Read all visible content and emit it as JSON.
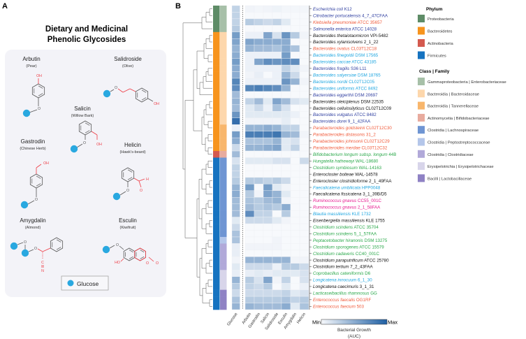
{
  "panel_a": {
    "label": "A",
    "title_line1": "Dietary and Medicinal",
    "title_line2": "Phenolic Glycosides",
    "compounds": [
      {
        "name": "Arbutin",
        "source": "(Pear)"
      },
      {
        "name": "Salidroside",
        "source": "(Olive)"
      },
      {
        "name": "Salicin",
        "source": "(Willow Bark)"
      },
      {
        "name": "Gastrodin",
        "source": "(Chinese Herb)"
      },
      {
        "name": "Helicin",
        "source": "(Hawk's-beard)"
      },
      {
        "name": "Amygdalin",
        "source": "(Almond)"
      },
      {
        "name": "Esculin",
        "source": "(Kiwifruit)"
      }
    ],
    "atoms": {
      "oh": "OH",
      "ho": "HO",
      "o": "O",
      "h": "H",
      "c": "C",
      "n": "N"
    },
    "legend_label": "Glucose",
    "colors": {
      "glucose": "#29a8e0",
      "highlight": "#ee3a43",
      "bond": "#555555",
      "panel_bg": "#f3f3f8"
    }
  },
  "panel_b": {
    "label": "B",
    "colorbar": {
      "min_label": "Min",
      "max_label": "Max",
      "title_line1": "Bacterial Growth",
      "title_line2": "(AUC)",
      "low_color": "#f7f9fc",
      "high_color": "#1f5fa3"
    },
    "phylum_legend": {
      "title": "Phylum",
      "items": [
        {
          "label": "Proteobacteria",
          "color": "#5e8c67"
        },
        {
          "label": "Bacteroidetes",
          "color": "#f7941d"
        },
        {
          "label": "Actinobacteria",
          "color": "#d45a4f"
        },
        {
          "label": "Firmicutes",
          "color": "#1673c0"
        }
      ]
    },
    "family_legend": {
      "title": "Class | Family",
      "items": [
        {
          "label": "Gammaproteobacteria | Enterobacteriaceae",
          "color": "#a7c0a8"
        },
        {
          "label": "Bacteroidia | Bacteroidaceae",
          "color": "#fdd7ac"
        },
        {
          "label": "Bacteroidia | Tannerellaceae",
          "color": "#f8b66c"
        },
        {
          "label": "Actinomycetia | Bifidobacteriaceae",
          "color": "#e8ab9e"
        },
        {
          "label": "Clostridia | Lachnospiraceae",
          "color": "#6f95d3"
        },
        {
          "label": "Clostridia | Peptostreptococcaceae",
          "color": "#b4c6ea"
        },
        {
          "label": "Clostridia | Clostridiaceae",
          "color": "#b1a9d9"
        },
        {
          "label": "Erysipelotrichia | Erysipelotrichaceae",
          "color": "#d8d5ea"
        },
        {
          "label": "Bacilli | Lactobacillaceae",
          "color": "#8f82c4"
        }
      ]
    },
    "label_colors": {
      "navy": "#2f3fa0",
      "black": "#111111",
      "red": "#f05a3a",
      "cyan": "#1fa6e0",
      "green": "#2aa84a",
      "magenta": "#e6198f"
    }
  },
  "chart_data": {
    "type": "heatmap",
    "colorbar_label": "Bacterial Growth (AUC)",
    "value_scale": "relative, 0 = Min, 1 = Max",
    "columns": [
      "Glucose",
      "Arbutin",
      "Gastrodin",
      "Salicin",
      "Salidroside",
      "Esculin",
      "Amygdalin",
      "Helicin"
    ],
    "rows": [
      {
        "name": "Escherichia coli",
        "strain": "K12",
        "color": "navy",
        "phylum": 0,
        "family": 0,
        "values": [
          0.25,
          0.03,
          0.02,
          0.03,
          0.04,
          0.02,
          0.02,
          0.02
        ]
      },
      {
        "name": "Citrobacter portucalensis",
        "strain": "4_7_47CFAA",
        "color": "navy",
        "phylum": 0,
        "family": 0,
        "values": [
          0.25,
          0,
          0,
          0,
          0,
          0,
          0,
          0
        ]
      },
      {
        "name": "Klebsiella pneumoniae",
        "strain": "ATCC 35657",
        "color": "red",
        "phylum": 0,
        "family": 0,
        "values": [
          0.25,
          0.3,
          0.25,
          0.2,
          0.25,
          0.1,
          0,
          0
        ]
      },
      {
        "name": "Salmonella enterica",
        "strain": "ATCC 14028",
        "color": "navy",
        "phylum": 0,
        "family": 0,
        "values": [
          0.3,
          0,
          0,
          0,
          0,
          0,
          0,
          0
        ]
      },
      {
        "name": "Bacteroides thetaiotaomicron",
        "strain": "VPI-5482",
        "color": "black",
        "phylum": 1,
        "family": 1,
        "values": [
          0.6,
          0.05,
          0.05,
          0.55,
          0.15,
          0.65,
          0.3,
          0.03
        ]
      },
      {
        "name": "Bacteroides xylanisolvens",
        "strain": "2_1_22",
        "color": "black",
        "phylum": 1,
        "family": 1,
        "values": [
          0.55,
          0.55,
          0.5,
          0.5,
          0.5,
          0.5,
          0,
          0
        ]
      },
      {
        "name": "Bacteroides ovatus",
        "strain": "CL03T12C18",
        "color": "red",
        "phylum": 1,
        "family": 1,
        "values": [
          0.45,
          0.45,
          0.4,
          0.4,
          0.35,
          0.5,
          0.35,
          0
        ]
      },
      {
        "name": "Bacteroides finegoldii",
        "strain": "DSM 17565",
        "color": "cyan",
        "phylum": 1,
        "family": 1,
        "values": [
          0.5,
          0.05,
          0.05,
          0.05,
          0.05,
          0.6,
          0,
          0
        ]
      },
      {
        "name": "Bacteroides caccae",
        "strain": "ATCC 43185",
        "color": "cyan",
        "phylum": 1,
        "family": 1,
        "values": [
          0.6,
          0.05,
          0.55,
          0.7,
          0.65,
          0.7,
          0.7,
          0
        ]
      },
      {
        "name": "Bacteroides fragilis",
        "strain": "S36 L11",
        "color": "navy",
        "phylum": 1,
        "family": 1,
        "values": [
          0.5,
          0.05,
          0.05,
          0.05,
          0.05,
          0.25,
          0.1,
          0.03
        ]
      },
      {
        "name": "Bacteroides salyersiae",
        "strain": "DSM 18765",
        "color": "cyan",
        "phylum": 1,
        "family": 1,
        "values": [
          0.5,
          0.03,
          0.07,
          0,
          0.05,
          0.45,
          0.2,
          0
        ]
      },
      {
        "name": "Bacteroides nordii",
        "strain": "CL02T12C05",
        "color": "cyan",
        "phylum": 1,
        "family": 1,
        "values": [
          0.75,
          0.05,
          0.05,
          0.05,
          0.05,
          0.65,
          0.45,
          0.03
        ]
      },
      {
        "name": "Bacteroides uniformis",
        "strain": "ATCC 8492",
        "color": "cyan",
        "phylum": 1,
        "family": 1,
        "values": [
          0.7,
          0.75,
          0.8,
          0.75,
          0.7,
          0.45,
          0,
          0
        ]
      },
      {
        "name": "Bacteroides eggerthii",
        "strain": "DSM 20697",
        "color": "navy",
        "phylum": 1,
        "family": 1,
        "values": [
          0.4,
          0,
          0,
          0,
          0,
          0,
          0,
          0
        ]
      },
      {
        "name": "Bacteroides oleiciplenus",
        "strain": "DSM 22535",
        "color": "black",
        "phylum": 1,
        "family": 1,
        "values": [
          0.45,
          0.25,
          0.4,
          0.1,
          0.55,
          0.4,
          0.15,
          0.1
        ]
      },
      {
        "name": "Bacteroides cellulosilyticus",
        "strain": "CL02T12C09",
        "color": "black",
        "phylum": 1,
        "family": 1,
        "values": [
          0.4,
          0.1,
          0.2,
          0.05,
          0.35,
          0.15,
          0,
          0
        ]
      },
      {
        "name": "Bacteroides vulgatus",
        "strain": "ATCC 8482",
        "color": "navy",
        "phylum": 1,
        "family": 1,
        "values": [
          0.65,
          0.1,
          0.1,
          0.1,
          0.1,
          0.1,
          0.05,
          0
        ]
      },
      {
        "name": "Bacteroides dorei",
        "strain": "9_1_42FAA",
        "color": "navy",
        "phylum": 1,
        "family": 1,
        "values": [
          0.9,
          0.03,
          0.03,
          0.03,
          0.03,
          0.08,
          0,
          0
        ]
      },
      {
        "name": "Parabacteroides goldsteinii",
        "strain": "CL02T12C30",
        "color": "red",
        "phylum": 1,
        "family": 2,
        "values": [
          0.05,
          0.45,
          0.45,
          0.5,
          0.45,
          0.25,
          0.25,
          0
        ]
      },
      {
        "name": "Parabacteroides distasonis",
        "strain": "31_2",
        "color": "red",
        "phylum": 1,
        "family": 2,
        "values": [
          0.6,
          0.8,
          0.8,
          0.8,
          0.85,
          0.45,
          0.4,
          0.03
        ]
      },
      {
        "name": "Parabacteroides johnsonii",
        "strain": "CL02T12C29",
        "color": "red",
        "phylum": 1,
        "family": 2,
        "values": [
          0.5,
          0.35,
          0.35,
          0.35,
          0.45,
          0.1,
          0.15,
          0
        ]
      },
      {
        "name": "Parabacteroides merdae",
        "strain": "CL03T12C32",
        "color": "red",
        "phylum": 1,
        "family": 2,
        "values": [
          0.2,
          0.45,
          0.45,
          0.5,
          0.55,
          0.1,
          0.25,
          0
        ]
      },
      {
        "name": "Bifidobacterium longum subsp. longum",
        "strain": "44B",
        "color": "green",
        "phylum": 2,
        "family": 3,
        "values": [
          0.4,
          0,
          0,
          0,
          0,
          0,
          0,
          0
        ]
      },
      {
        "name": "Hungatella hathewayi",
        "strain": "WAL-18680",
        "color": "green",
        "phylum": 3,
        "family": 4,
        "values": [
          0.15,
          0.1,
          0.1,
          0.1,
          0.15,
          0.15,
          0,
          0.2
        ]
      },
      {
        "name": "Clostridium symbiosum",
        "strain": "WAL-14163",
        "color": "green",
        "phylum": 3,
        "family": 4,
        "values": [
          0.25,
          0,
          0,
          0,
          0,
          0,
          0,
          0
        ]
      },
      {
        "name": "Enterocloster bolteae",
        "strain": "WAL-14578",
        "color": "black",
        "phylum": 3,
        "family": 4,
        "values": [
          0.25,
          0,
          0,
          0,
          0,
          0,
          0,
          0
        ]
      },
      {
        "name": "Enterocloster clostridioforme",
        "strain": "2_1_49FAA",
        "color": "black",
        "phylum": 3,
        "family": 4,
        "values": [
          0.3,
          0.3,
          0.3,
          0.25,
          0.3,
          0.2,
          0,
          0
        ]
      },
      {
        "name": "Faecalicatena umbilicata",
        "strain": "HPP0048",
        "color": "cyan",
        "phylum": 3,
        "family": 4,
        "values": [
          0.45,
          0.6,
          0,
          0.6,
          0.1,
          0.03,
          0,
          0
        ]
      },
      {
        "name": "Faecalicatena fissicatena",
        "strain": "3_1_39B/D5",
        "color": "black",
        "phylum": 3,
        "family": 4,
        "values": [
          0.5,
          0.3,
          0.03,
          0.55,
          0.45,
          0.1,
          0,
          0
        ]
      },
      {
        "name": "Ruminococcus gnavus",
        "strain": "CC55_001C",
        "color": "magenta",
        "phylum": 3,
        "family": 4,
        "values": [
          0.4,
          0.35,
          0.3,
          0.4,
          0.45,
          0.03,
          0,
          0
        ]
      },
      {
        "name": "Ruminococcus gnavus",
        "strain": "2_1_58FAA",
        "color": "magenta",
        "phylum": 3,
        "family": 4,
        "values": [
          0.4,
          0.4,
          0.3,
          0.35,
          0.3,
          0.5,
          0,
          0
        ]
      },
      {
        "name": "Blautia massiliensis",
        "strain": "KLE 1732",
        "color": "cyan",
        "phylum": 3,
        "family": 4,
        "values": [
          0.4,
          0.7,
          0.25,
          0.25,
          0,
          0.3,
          0,
          0
        ]
      },
      {
        "name": "Eisenbergiella massiliensis",
        "strain": "KLE 1755",
        "color": "black",
        "phylum": 3,
        "family": 4,
        "values": [
          0.1,
          0.2,
          0.2,
          0.2,
          0.1,
          0.03,
          0,
          0
        ]
      },
      {
        "name": "Clostridium scindens",
        "strain": "ATCC 35704",
        "color": "green",
        "phylum": 3,
        "family": 4,
        "values": [
          0.2,
          0,
          0,
          0,
          0,
          0,
          0,
          0
        ]
      },
      {
        "name": "Clostridium scindens",
        "strain": "5_1_57FAA",
        "color": "green",
        "phylum": 3,
        "family": 4,
        "values": [
          0.35,
          0,
          0,
          0,
          0,
          0,
          0,
          0
        ]
      },
      {
        "name": "Peptacetobacter hiranonis",
        "strain": "DSM 13275",
        "color": "green",
        "phylum": 3,
        "family": 5,
        "values": [
          0.35,
          0,
          0,
          0,
          0.03,
          0,
          0,
          0
        ]
      },
      {
        "name": "Clostridium sporogenes",
        "strain": "ATCC 15579",
        "color": "green",
        "phylum": 3,
        "family": 6,
        "values": [
          0.07,
          0.03,
          0.03,
          0.03,
          0.03,
          0,
          0,
          0
        ]
      },
      {
        "name": "Clostridium cadaveris",
        "strain": "CC40_001C",
        "color": "green",
        "phylum": 3,
        "family": 6,
        "values": [
          0.07,
          0,
          0,
          0,
          0,
          0,
          0,
          0
        ]
      },
      {
        "name": "Clostridium paraputrificum",
        "strain": "ATCC 25780",
        "color": "black",
        "phylum": 3,
        "family": 6,
        "values": [
          0.03,
          0.45,
          0.45,
          0.45,
          0.45,
          0.45,
          0.03,
          0.03
        ]
      },
      {
        "name": "Clostridium tertium",
        "strain": "7_2_43FAA",
        "color": "black",
        "phylum": 3,
        "family": 6,
        "values": [
          0.1,
          0.2,
          0.2,
          0.2,
          0.05,
          0.3,
          0.3,
          0.2
        ]
      },
      {
        "name": "Coprobacillus cateniformis",
        "strain": "D6",
        "color": "green",
        "phylum": 3,
        "family": 7,
        "values": [
          0.07,
          0.07,
          0.1,
          0.07,
          0.1,
          0.1,
          0.1,
          0.15
        ]
      },
      {
        "name": "Longicatena innocuum",
        "strain": "6_1_30",
        "color": "cyan",
        "phylum": 3,
        "family": 7,
        "values": [
          0.45,
          0.3,
          0.15,
          0.55,
          0.03,
          0.25,
          0,
          0.15
        ]
      },
      {
        "name": "Longicatena caecimuris",
        "strain": "3_1_31",
        "color": "black",
        "phylum": 3,
        "family": 7,
        "values": [
          0.3,
          0.25,
          0.2,
          0.3,
          0,
          0.1,
          0,
          0.05
        ]
      },
      {
        "name": "Lacticaseibacillus rhamnosus",
        "strain": "GG",
        "color": "green",
        "phylum": 3,
        "family": 8,
        "values": [
          0.2,
          0.2,
          0.2,
          0.2,
          0.2,
          0.25,
          0.1,
          0.15
        ]
      },
      {
        "name": "Enterococcus faecalis",
        "strain": "OG1RF",
        "color": "red",
        "phylum": 3,
        "family": 8,
        "values": [
          0.35,
          0.3,
          0.3,
          0.3,
          0.3,
          0.35,
          0.25,
          0.3
        ]
      },
      {
        "name": "Enterococcus faecium",
        "strain": "503",
        "color": "red",
        "phylum": 3,
        "family": 8,
        "values": [
          0.45,
          0.45,
          0.4,
          0.4,
          0.4,
          0.5,
          0.1,
          0.35
        ]
      }
    ]
  }
}
